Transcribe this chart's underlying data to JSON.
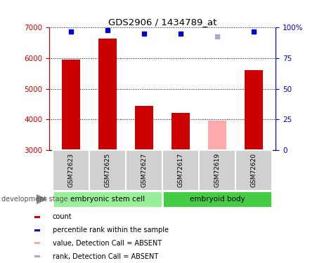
{
  "title": "GDS2906 / 1434789_at",
  "samples": [
    "GSM72623",
    "GSM72625",
    "GSM72627",
    "GSM72617",
    "GSM72619",
    "GSM72620"
  ],
  "bar_values": [
    5950,
    6650,
    4450,
    4200,
    3950,
    5620
  ],
  "bar_colors": [
    "#cc0000",
    "#cc0000",
    "#cc0000",
    "#cc0000",
    "#ffaaaa",
    "#cc0000"
  ],
  "rank_values": [
    97,
    98,
    95,
    95,
    93,
    97
  ],
  "rank_colors": [
    "#0000cc",
    "#0000cc",
    "#0000cc",
    "#0000cc",
    "#aaaacc",
    "#0000cc"
  ],
  "ylim_left": [
    3000,
    7000
  ],
  "ylim_right": [
    0,
    100
  ],
  "yticks_left": [
    3000,
    4000,
    5000,
    6000,
    7000
  ],
  "yticks_right": [
    0,
    25,
    50,
    75,
    100
  ],
  "groups": [
    {
      "label": "embryonic stem cell",
      "color": "#99ee99",
      "span": [
        0,
        3
      ]
    },
    {
      "label": "embryoid body",
      "color": "#44cc44",
      "span": [
        3,
        6
      ]
    }
  ],
  "group_label_prefix": "development stage",
  "legend": [
    {
      "label": "count",
      "color": "#cc0000"
    },
    {
      "label": "percentile rank within the sample",
      "color": "#0000cc"
    },
    {
      "label": "value, Detection Call = ABSENT",
      "color": "#ffaaaa"
    },
    {
      "label": "rank, Detection Call = ABSENT",
      "color": "#aaaacc"
    }
  ],
  "bar_bottom": 3000,
  "background_color": "#ffffff"
}
